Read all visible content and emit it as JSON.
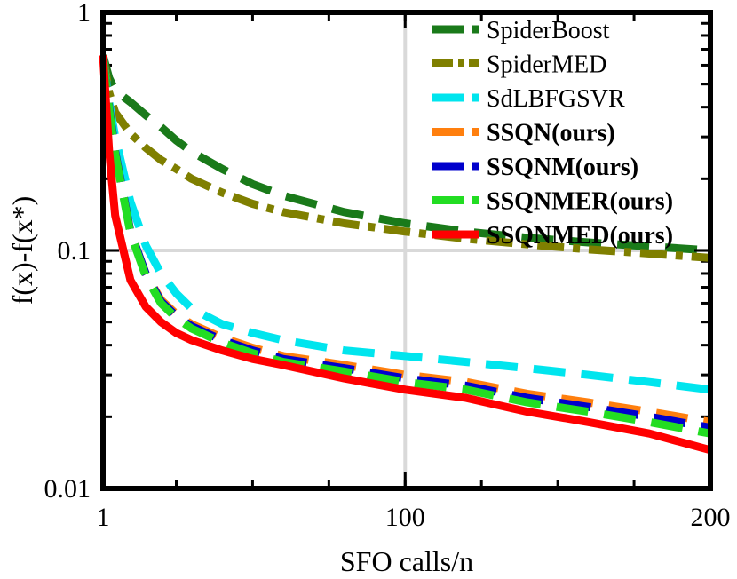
{
  "chart_data": {
    "type": "line",
    "title": "",
    "xlabel": "SFO calls/n",
    "ylabel": "f(x)-f(x*)",
    "xlim": [
      1,
      200
    ],
    "ylim": [
      0.01,
      1
    ],
    "yscale": "log",
    "xticks": [
      1,
      100,
      200
    ],
    "xtick_labels": [
      "1",
      "100",
      "200"
    ],
    "yticks": [
      0.01,
      0.1,
      1
    ],
    "ytick_labels": [
      "0.01",
      "0.1",
      "1"
    ],
    "grid": true,
    "legend_position": "top-right",
    "x": [
      1,
      3,
      5,
      10,
      15,
      20,
      25,
      30,
      40,
      50,
      60,
      80,
      100,
      120,
      140,
      160,
      180,
      200
    ],
    "series": [
      {
        "name": "SpiderBoost",
        "color": "#1a7a1a",
        "dash": "dash",
        "bold": false,
        "values": [
          0.66,
          0.53,
          0.47,
          0.42,
          0.37,
          0.33,
          0.29,
          0.26,
          0.22,
          0.19,
          0.17,
          0.145,
          0.13,
          0.12,
          0.113,
          0.108,
          0.104,
          0.1
        ]
      },
      {
        "name": "SpiderMED",
        "color": "#7f7f00",
        "dash": "dashdot",
        "bold": false,
        "values": [
          0.66,
          0.46,
          0.38,
          0.31,
          0.27,
          0.24,
          0.22,
          0.2,
          0.175,
          0.157,
          0.145,
          0.13,
          0.12,
          0.112,
          0.106,
          0.101,
          0.097,
          0.093
        ]
      },
      {
        "name": "SdLBFGSVR",
        "color": "#00e5ee",
        "dash": "dash",
        "bold": false,
        "values": [
          0.66,
          0.42,
          0.3,
          0.16,
          0.105,
          0.08,
          0.066,
          0.057,
          0.049,
          0.045,
          0.042,
          0.038,
          0.036,
          0.034,
          0.032,
          0.03,
          0.028,
          0.026
        ]
      },
      {
        "name": "SSQN(ours)",
        "color": "#ff7f0e",
        "dash": "dash",
        "bold": true,
        "values": [
          0.66,
          0.4,
          0.26,
          0.12,
          0.08,
          0.062,
          0.054,
          0.049,
          0.043,
          0.039,
          0.036,
          0.033,
          0.03,
          0.028,
          0.025,
          0.023,
          0.021,
          0.019
        ]
      },
      {
        "name": "SSQNM(ours)",
        "color": "#0000cc",
        "dash": "dash",
        "bold": true,
        "values": [
          0.66,
          0.4,
          0.26,
          0.12,
          0.08,
          0.061,
          0.053,
          0.048,
          0.042,
          0.038,
          0.035,
          0.032,
          0.029,
          0.027,
          0.024,
          0.022,
          0.02,
          0.018
        ]
      },
      {
        "name": "SSQNMER(ours)",
        "color": "#22dd22",
        "dash": "dash",
        "bold": true,
        "values": [
          0.66,
          0.39,
          0.255,
          0.118,
          0.078,
          0.06,
          0.052,
          0.047,
          0.041,
          0.037,
          0.034,
          0.031,
          0.028,
          0.026,
          0.023,
          0.021,
          0.019,
          0.017
        ]
      },
      {
        "name": "SSQNMED(ours)",
        "color": "#ff0000",
        "dash": "solid",
        "bold": true,
        "values": [
          0.66,
          0.26,
          0.14,
          0.075,
          0.058,
          0.05,
          0.045,
          0.042,
          0.038,
          0.035,
          0.033,
          0.029,
          0.026,
          0.024,
          0.021,
          0.019,
          0.017,
          0.0145
        ]
      }
    ]
  }
}
